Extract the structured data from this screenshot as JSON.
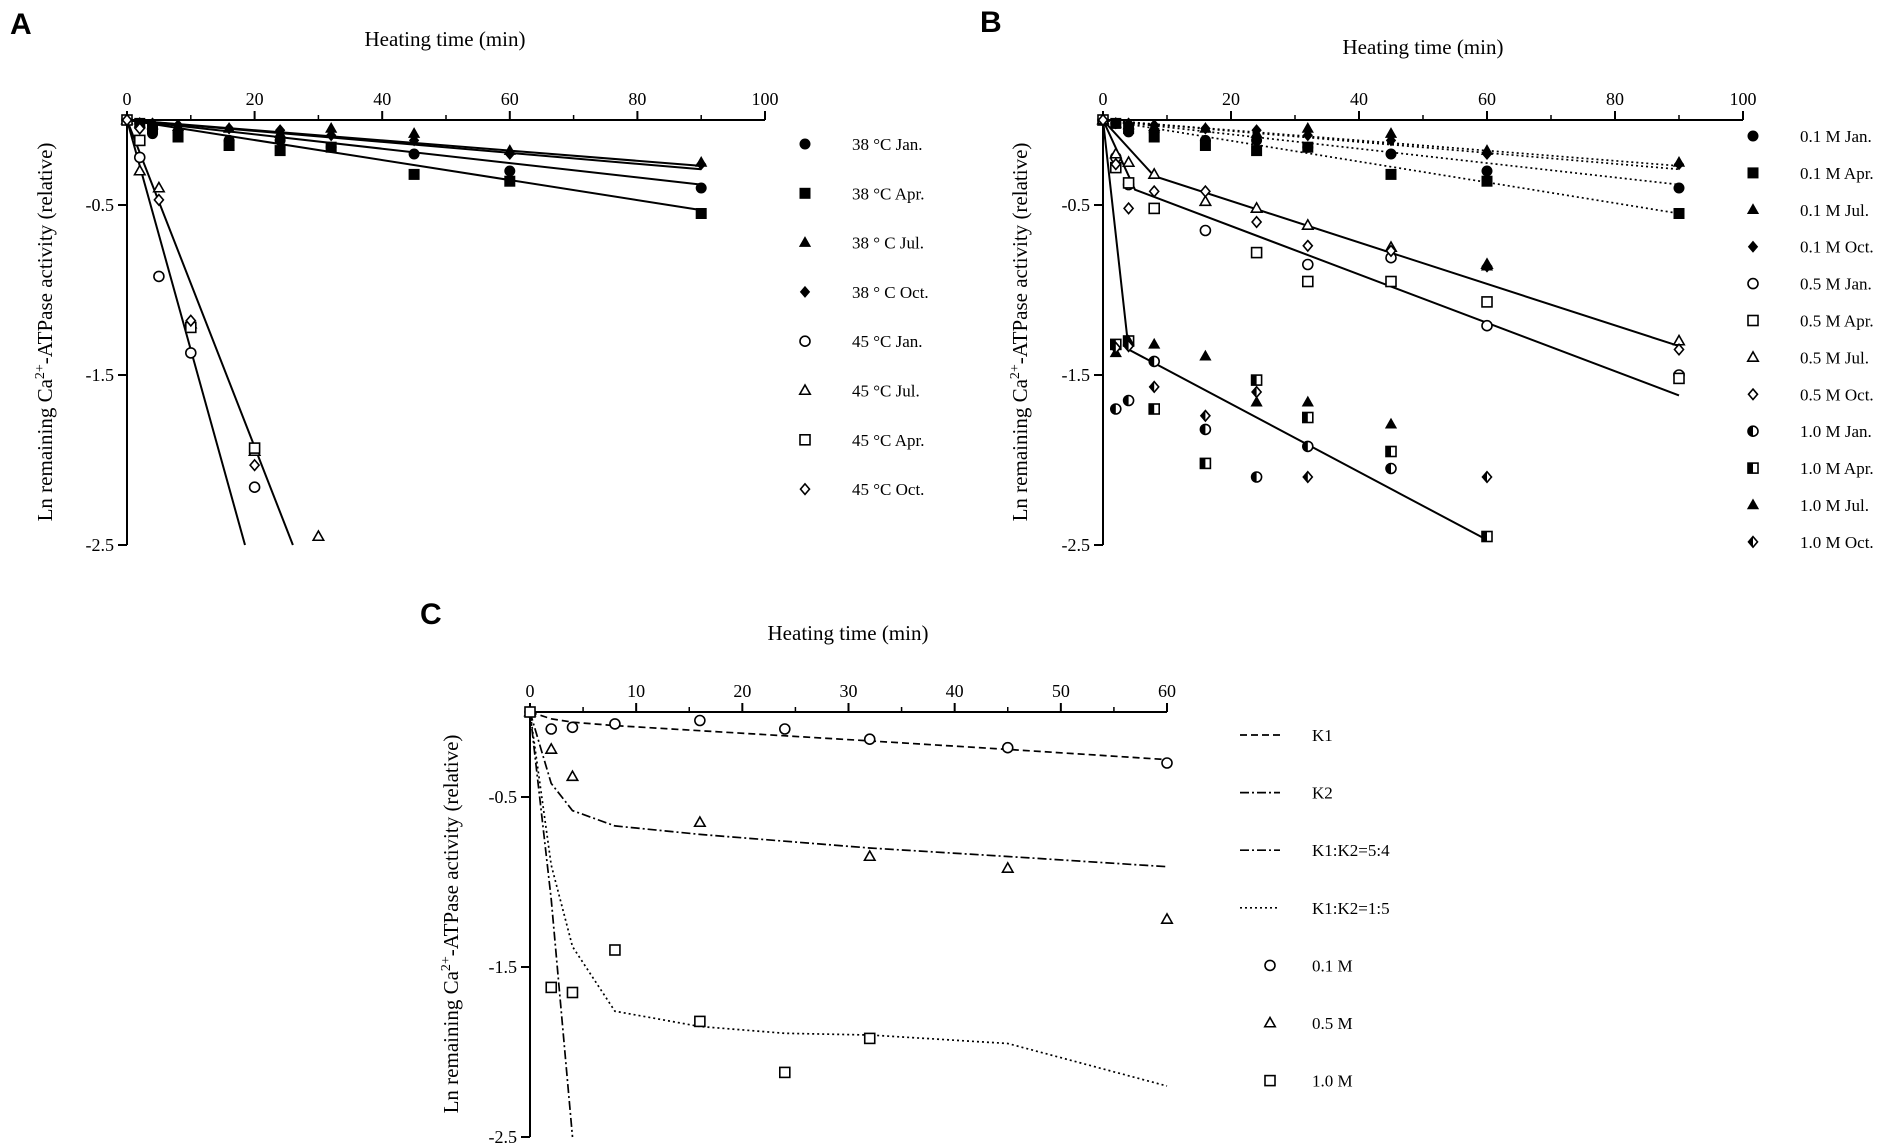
{
  "colors": {
    "ink": "#000000",
    "background": "#ffffff"
  },
  "chart_data": [
    {
      "panel": "A",
      "type": "scatter",
      "xlabel": "Heating time (min)",
      "ylabel": "Ln remaining Ca2+-ATPase activity (relative)",
      "xlim": [
        0,
        100
      ],
      "ylim": [
        -2.5,
        0
      ],
      "x_ticks": [
        0,
        20,
        40,
        60,
        80,
        100
      ],
      "y_ticks": [
        -0.5,
        -1.5,
        -2.5
      ],
      "series": [
        {
          "name": "38 °C Jan.",
          "marker": "circle-filled",
          "x": [
            0,
            2,
            4,
            8,
            16,
            24,
            32,
            45,
            60,
            90
          ],
          "y": [
            0,
            -0.02,
            -0.08,
            -0.07,
            -0.12,
            -0.12,
            -0.16,
            -0.2,
            -0.3,
            -0.4
          ]
        },
        {
          "name": "38 °C Apr.",
          "marker": "square-filled",
          "x": [
            0,
            2,
            4,
            8,
            16,
            24,
            32,
            45,
            60,
            90
          ],
          "y": [
            0,
            -0.02,
            -0.05,
            -0.1,
            -0.15,
            -0.18,
            -0.16,
            -0.32,
            -0.36,
            -0.55
          ]
        },
        {
          "name": "38 ° C Jul.",
          "marker": "triangle-filled",
          "x": [
            0,
            2,
            4,
            8,
            16,
            24,
            32,
            45,
            60,
            90
          ],
          "y": [
            0,
            -0.02,
            -0.03,
            -0.04,
            -0.05,
            -0.08,
            -0.05,
            -0.08,
            -0.18,
            -0.25
          ]
        },
        {
          "name": "38 ° C Oct.",
          "marker": "diamond-filled",
          "x": [
            0,
            2,
            4,
            8,
            16,
            24,
            32,
            45,
            60,
            90
          ],
          "y": [
            0,
            -0.02,
            -0.02,
            -0.03,
            -0.05,
            -0.06,
            -0.09,
            -0.12,
            -0.2,
            -0.26
          ]
        },
        {
          "name": "45 °C Jan.",
          "marker": "circle-open",
          "x": [
            0,
            2,
            5,
            10,
            20
          ],
          "y": [
            0,
            -0.22,
            -0.92,
            -1.37,
            -2.16
          ]
        },
        {
          "name": "45 °C Jul.",
          "marker": "triangle-open",
          "x": [
            0,
            2,
            5,
            10,
            20,
            30
          ],
          "y": [
            0,
            -0.3,
            -0.4,
            -1.2,
            -1.95,
            -2.45
          ]
        },
        {
          "name": "45 °C Apr.",
          "marker": "square-open",
          "x": [
            0,
            2,
            10,
            20
          ],
          "y": [
            0,
            -0.12,
            -1.22,
            -1.93
          ]
        },
        {
          "name": "45 °C Oct.",
          "marker": "diamond-open",
          "x": [
            0,
            2,
            5,
            10,
            20
          ],
          "y": [
            0,
            -0.05,
            -0.47,
            -1.18,
            -2.03
          ]
        }
      ],
      "fit_lines": [
        {
          "style": "solid",
          "x": [
            0,
            90
          ],
          "y": [
            0,
            -0.27
          ]
        },
        {
          "style": "solid",
          "x": [
            0,
            90
          ],
          "y": [
            0,
            -0.29
          ]
        },
        {
          "style": "solid",
          "x": [
            0,
            90
          ],
          "y": [
            0,
            -0.38
          ]
        },
        {
          "style": "solid",
          "x": [
            0,
            90
          ],
          "y": [
            0,
            -0.53
          ]
        },
        {
          "style": "solid",
          "x": [
            0,
            18.5
          ],
          "y": [
            0,
            -2.5
          ]
        },
        {
          "style": "solid",
          "x": [
            0,
            26
          ],
          "y": [
            0,
            -2.5
          ]
        }
      ]
    },
    {
      "panel": "B",
      "type": "scatter",
      "xlabel": "Heating time (min)",
      "ylabel": "Ln remaining Ca2+-ATPase activity (relative)",
      "xlim": [
        0,
        100
      ],
      "ylim": [
        -2.5,
        0
      ],
      "x_ticks": [
        0,
        20,
        40,
        60,
        80,
        100
      ],
      "y_ticks": [
        -0.5,
        -1.5,
        -2.5
      ],
      "series": [
        {
          "name": "0.1 M Jan.",
          "marker": "circle-filled",
          "x": [
            0,
            2,
            4,
            8,
            16,
            24,
            32,
            45,
            60,
            90
          ],
          "y": [
            0,
            -0.02,
            -0.07,
            -0.07,
            -0.12,
            -0.12,
            -0.16,
            -0.2,
            -0.3,
            -0.4
          ]
        },
        {
          "name": "0.1 M Apr.",
          "marker": "square-filled",
          "x": [
            0,
            2,
            4,
            8,
            16,
            24,
            32,
            45,
            60,
            90
          ],
          "y": [
            0,
            -0.02,
            -0.05,
            -0.1,
            -0.15,
            -0.18,
            -0.16,
            -0.32,
            -0.36,
            -0.55
          ]
        },
        {
          "name": "0.1 M Jul.",
          "marker": "triangle-filled",
          "x": [
            0,
            2,
            4,
            8,
            16,
            24,
            32,
            45,
            60,
            90
          ],
          "y": [
            0,
            -0.02,
            -0.03,
            -0.04,
            -0.05,
            -0.08,
            -0.05,
            -0.08,
            -0.18,
            -0.25
          ]
        },
        {
          "name": "0.1 M Oct.",
          "marker": "diamond-filled",
          "x": [
            0,
            2,
            4,
            8,
            16,
            24,
            32,
            45,
            60,
            90
          ],
          "y": [
            0,
            -0.02,
            -0.02,
            -0.03,
            -0.05,
            -0.06,
            -0.09,
            -0.12,
            -0.2,
            -0.26
          ]
        },
        {
          "name": "0.5 M Jan.",
          "marker": "circle-open",
          "x": [
            0,
            2,
            4,
            16,
            32,
            45,
            60,
            90
          ],
          "y": [
            0,
            -0.22,
            -0.38,
            -0.65,
            -0.85,
            -0.81,
            -1.21,
            -1.5
          ]
        },
        {
          "name": "0.5 M Apr.",
          "marker": "square-open",
          "x": [
            0,
            2,
            4,
            8,
            24,
            32,
            45,
            60,
            90
          ],
          "y": [
            0,
            -0.28,
            -0.37,
            -0.52,
            -0.78,
            -0.95,
            -0.95,
            -1.07,
            -1.52
          ]
        },
        {
          "name": "0.5 M Jul.",
          "marker": "triangle-open",
          "x": [
            0,
            2,
            4,
            8,
            16,
            24,
            32,
            45,
            60,
            90
          ],
          "y": [
            0,
            -0.2,
            -0.25,
            -0.32,
            -0.48,
            -0.52,
            -0.62,
            -0.75,
            -0.85,
            -1.3
          ]
        },
        {
          "name": "0.5 M Oct.",
          "marker": "diamond-open",
          "x": [
            0,
            2,
            4,
            8,
            16,
            24,
            32,
            45,
            60,
            90
          ],
          "y": [
            0,
            -0.26,
            -0.52,
            -0.42,
            -0.42,
            -0.6,
            -0.74,
            -0.77,
            -0.86,
            -1.35
          ]
        },
        {
          "name": "1.0 M Jan.",
          "marker": "circle-half",
          "x": [
            2,
            4,
            8,
            16,
            24,
            32,
            45
          ],
          "y": [
            -1.7,
            -1.65,
            -1.42,
            -1.82,
            -2.1,
            -1.92,
            -2.05
          ]
        },
        {
          "name": "1.0 M Apr.",
          "marker": "square-half",
          "x": [
            2,
            4,
            8,
            16,
            24,
            32,
            45,
            60
          ],
          "y": [
            -1.32,
            -1.3,
            -1.7,
            -2.02,
            -1.53,
            -1.75,
            -1.95,
            -2.45
          ]
        },
        {
          "name": "1.0 M Jul.",
          "marker": "triangle-filled",
          "x": [
            2,
            4,
            8,
            16,
            24,
            32,
            45,
            60
          ],
          "y": [
            -1.37,
            -1.3,
            -1.32,
            -1.39,
            -1.66,
            -1.66,
            -1.79,
            -0.86
          ]
        },
        {
          "name": "1.0 M Oct.",
          "marker": "diamond-half",
          "x": [
            2,
            4,
            8,
            16,
            24,
            32,
            60
          ],
          "y": [
            -1.34,
            -1.33,
            -1.57,
            -1.74,
            -1.6,
            -2.1,
            -2.1
          ]
        }
      ],
      "fit_lines": [
        {
          "style": "dotted",
          "x": [
            0,
            90
          ],
          "y": [
            0,
            -0.27
          ]
        },
        {
          "style": "dotted",
          "x": [
            0,
            90
          ],
          "y": [
            0,
            -0.29
          ]
        },
        {
          "style": "dotted",
          "x": [
            0,
            90
          ],
          "y": [
            0,
            -0.38
          ]
        },
        {
          "style": "dotted",
          "x": [
            0,
            90
          ],
          "y": [
            0,
            -0.55
          ]
        },
        {
          "style": "solid",
          "x": [
            0,
            8,
            90
          ],
          "y": [
            0,
            -0.33,
            -1.33
          ]
        },
        {
          "style": "solid",
          "x": [
            0,
            5,
            90
          ],
          "y": [
            0,
            -0.41,
            -1.62
          ]
        },
        {
          "style": "solid",
          "x": [
            0,
            4,
            60
          ],
          "y": [
            0,
            -1.35,
            -2.47
          ]
        }
      ]
    },
    {
      "panel": "C",
      "type": "scatter",
      "xlabel": "Heating time (min)",
      "ylabel": "Ln remaining Ca2+-ATPase activity (relative)",
      "xlim": [
        0,
        60
      ],
      "ylim": [
        -2.5,
        0
      ],
      "x_ticks": [
        0,
        10,
        20,
        30,
        40,
        50,
        60
      ],
      "y_ticks": [
        -0.5,
        -1.5,
        -2.5
      ],
      "series": [
        {
          "name": "0.1 M",
          "marker": "circle-open",
          "x": [
            0,
            2,
            4,
            8,
            16,
            24,
            32,
            45,
            60
          ],
          "y": [
            0,
            -0.1,
            -0.09,
            -0.07,
            -0.05,
            -0.1,
            -0.16,
            -0.21,
            -0.3
          ]
        },
        {
          "name": "0.5 M",
          "marker": "triangle-open",
          "x": [
            0,
            2,
            4,
            16,
            32,
            45,
            60
          ],
          "y": [
            0,
            -0.22,
            -0.38,
            -0.65,
            -0.85,
            -0.92,
            -1.22
          ]
        },
        {
          "name": "1.0 M",
          "marker": "square-open",
          "x": [
            0,
            2,
            4,
            8,
            16,
            24,
            32
          ],
          "y": [
            0,
            -1.62,
            -1.65,
            -1.4,
            -1.82,
            -2.12,
            -1.92
          ]
        }
      ],
      "model_lines": [
        {
          "name": "K1",
          "style": "dashed",
          "x": [
            0,
            2,
            4,
            8,
            16,
            24,
            32,
            45,
            60
          ],
          "y": [
            0,
            -0.04,
            -0.06,
            -0.08,
            -0.11,
            -0.14,
            -0.17,
            -0.22,
            -0.28
          ]
        },
        {
          "name": "K2",
          "style": "dashdot",
          "x": [
            0,
            2,
            4
          ],
          "y": [
            0,
            -1.1,
            -2.5
          ]
        },
        {
          "name": "K1:K2=5:4",
          "style": "dashdot",
          "x": [
            0,
            2,
            4,
            8,
            16,
            24,
            32,
            45,
            60
          ],
          "y": [
            0,
            -0.42,
            -0.58,
            -0.67,
            -0.72,
            -0.76,
            -0.8,
            -0.85,
            -0.91
          ]
        },
        {
          "name": "K1:K2=1:5",
          "style": "dotted",
          "x": [
            0,
            2,
            4,
            8,
            16,
            24,
            32,
            45,
            60
          ],
          "y": [
            0,
            -0.9,
            -1.38,
            -1.76,
            -1.85,
            -1.89,
            -1.9,
            -1.95,
            -2.2
          ]
        }
      ]
    }
  ]
}
